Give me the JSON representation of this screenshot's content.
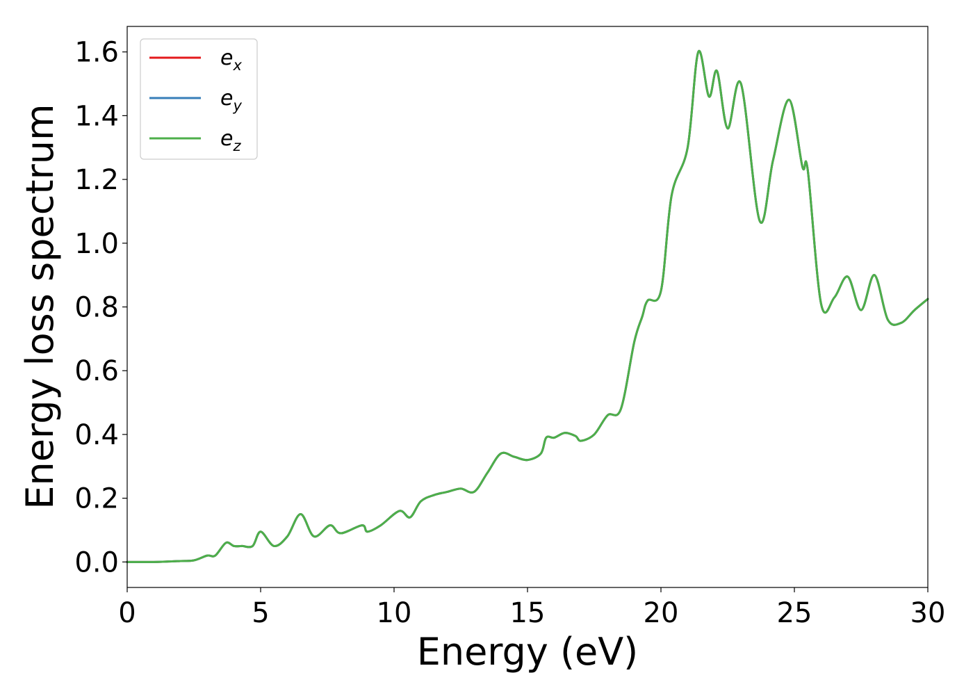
{
  "chart_data": {
    "type": "line",
    "title": "",
    "xlabel": "Energy (eV)",
    "ylabel": "Energy loss spectrum",
    "xlim": [
      0,
      30
    ],
    "ylim": [
      -0.08,
      1.68
    ],
    "xticks": [
      0,
      5,
      10,
      15,
      20,
      25,
      30
    ],
    "xtick_labels": [
      "0",
      "5",
      "10",
      "15",
      "20",
      "25",
      "30"
    ],
    "yticks": [
      0.0,
      0.2,
      0.4,
      0.6,
      0.8,
      1.0,
      1.2,
      1.4,
      1.6
    ],
    "ytick_labels": [
      "0.0",
      "0.2",
      "0.4",
      "0.6",
      "0.8",
      "1.0",
      "1.2",
      "1.4",
      "1.6"
    ],
    "grid": false,
    "legend_position": "top-left",
    "x": [
      0.0,
      1.0,
      2.0,
      2.5,
      3.0,
      3.3,
      3.7,
      4.0,
      4.3,
      4.7,
      5.0,
      5.5,
      6.0,
      6.5,
      7.0,
      7.6,
      8.0,
      8.8,
      9.0,
      9.5,
      10.2,
      10.6,
      11.0,
      11.5,
      12.0,
      12.5,
      13.0,
      13.5,
      14.0,
      14.5,
      15.0,
      15.5,
      15.7,
      16.0,
      16.4,
      16.8,
      17.0,
      17.5,
      18.0,
      18.5,
      19.0,
      19.3,
      19.5,
      20.0,
      20.4,
      21.0,
      21.4,
      21.8,
      22.1,
      22.5,
      23.0,
      23.7,
      24.2,
      24.8,
      25.3,
      25.5,
      26.0,
      26.5,
      27.0,
      27.5,
      28.0,
      28.5,
      29.0,
      29.5,
      30.0
    ],
    "series": [
      {
        "name": "e_x",
        "label_base": "e",
        "label_sub": "x",
        "color": "#e41a1c",
        "values": [
          0.0,
          0.0,
          0.003,
          0.005,
          0.02,
          0.02,
          0.06,
          0.05,
          0.05,
          0.05,
          0.095,
          0.05,
          0.08,
          0.15,
          0.08,
          0.115,
          0.09,
          0.115,
          0.095,
          0.115,
          0.16,
          0.14,
          0.19,
          0.21,
          0.22,
          0.23,
          0.22,
          0.28,
          0.34,
          0.33,
          0.32,
          0.34,
          0.39,
          0.39,
          0.405,
          0.395,
          0.38,
          0.4,
          0.46,
          0.48,
          0.69,
          0.77,
          0.82,
          0.85,
          1.15,
          1.3,
          1.6,
          1.46,
          1.54,
          1.36,
          1.5,
          1.07,
          1.26,
          1.45,
          1.24,
          1.23,
          0.81,
          0.83,
          0.895,
          0.79,
          0.9,
          0.76,
          0.75,
          0.79,
          0.825
        ]
      },
      {
        "name": "e_y",
        "label_base": "e",
        "label_sub": "y",
        "color": "#377eb8",
        "values": [
          0.0,
          0.0,
          0.003,
          0.005,
          0.02,
          0.02,
          0.06,
          0.05,
          0.05,
          0.05,
          0.095,
          0.05,
          0.08,
          0.15,
          0.08,
          0.115,
          0.09,
          0.115,
          0.095,
          0.115,
          0.16,
          0.14,
          0.19,
          0.21,
          0.22,
          0.23,
          0.22,
          0.28,
          0.34,
          0.33,
          0.32,
          0.34,
          0.39,
          0.39,
          0.405,
          0.395,
          0.38,
          0.4,
          0.46,
          0.48,
          0.69,
          0.77,
          0.82,
          0.85,
          1.15,
          1.3,
          1.6,
          1.46,
          1.54,
          1.36,
          1.5,
          1.07,
          1.26,
          1.45,
          1.24,
          1.23,
          0.81,
          0.83,
          0.895,
          0.79,
          0.9,
          0.76,
          0.75,
          0.79,
          0.825
        ]
      },
      {
        "name": "e_z",
        "label_base": "e",
        "label_sub": "z",
        "color": "#4daf4a",
        "values": [
          0.0,
          0.0,
          0.003,
          0.005,
          0.02,
          0.02,
          0.06,
          0.05,
          0.05,
          0.05,
          0.095,
          0.05,
          0.08,
          0.15,
          0.08,
          0.115,
          0.09,
          0.115,
          0.095,
          0.115,
          0.16,
          0.14,
          0.19,
          0.21,
          0.22,
          0.23,
          0.22,
          0.28,
          0.34,
          0.33,
          0.32,
          0.34,
          0.39,
          0.39,
          0.405,
          0.395,
          0.38,
          0.4,
          0.46,
          0.48,
          0.69,
          0.77,
          0.82,
          0.85,
          1.15,
          1.3,
          1.6,
          1.46,
          1.54,
          1.36,
          1.5,
          1.07,
          1.26,
          1.45,
          1.24,
          1.23,
          0.81,
          0.83,
          0.895,
          0.79,
          0.9,
          0.76,
          0.75,
          0.79,
          0.825
        ]
      }
    ]
  }
}
